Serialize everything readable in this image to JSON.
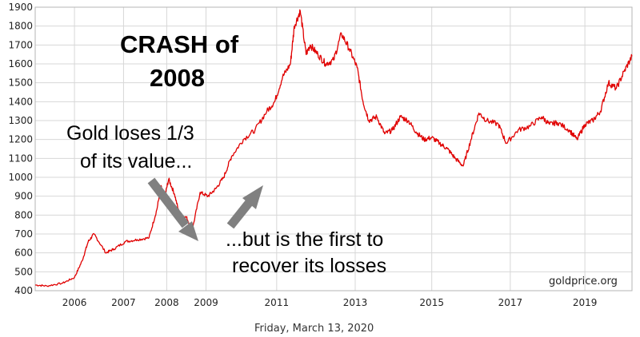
{
  "chart_data": {
    "type": "line",
    "title": "",
    "xlabel": "",
    "ylabel": "",
    "ylim": [
      400,
      1900
    ],
    "xlim": [
      2005.0,
      2020.2
    ],
    "grid": true,
    "y_ticks": [
      400,
      500,
      600,
      700,
      800,
      900,
      1000,
      1100,
      1200,
      1300,
      1400,
      1500,
      1600,
      1700,
      1800,
      1900
    ],
    "x_tick_values": [
      2006,
      2007,
      2008,
      2009,
      2011,
      2013,
      2015,
      2017,
      2019
    ],
    "x_tick_positions": [
      2006,
      2007.25,
      2008.35,
      2009.35,
      2011.15,
      2013.15,
      2015.1,
      2017.1,
      2019.0
    ],
    "color": "#e00000",
    "series": [
      {
        "name": "",
        "x": [
          2005.0,
          2005.3,
          2005.7,
          2006.0,
          2006.2,
          2006.35,
          2006.5,
          2006.8,
          2007.0,
          2007.3,
          2007.6,
          2007.9,
          2008.1,
          2008.2,
          2008.3,
          2008.4,
          2008.55,
          2008.7,
          2008.85,
          2009.0,
          2009.2,
          2009.4,
          2009.6,
          2009.8,
          2010.0,
          2010.3,
          2010.6,
          2010.9,
          2011.1,
          2011.3,
          2011.5,
          2011.6,
          2011.75,
          2011.9,
          2012.0,
          2012.2,
          2012.4,
          2012.6,
          2012.8,
          2013.0,
          2013.2,
          2013.35,
          2013.5,
          2013.7,
          2013.9,
          2014.1,
          2014.3,
          2014.5,
          2014.7,
          2014.9,
          2015.1,
          2015.3,
          2015.5,
          2015.7,
          2015.9,
          2016.1,
          2016.3,
          2016.5,
          2016.8,
          2017.0,
          2017.3,
          2017.6,
          2017.9,
          2018.1,
          2018.3,
          2018.6,
          2018.8,
          2019.0,
          2019.2,
          2019.4,
          2019.6,
          2019.8,
          2020.0,
          2020.2
        ],
        "values": [
          430,
          425,
          440,
          470,
          560,
          660,
          700,
          600,
          620,
          660,
          670,
          680,
          830,
          950,
          900,
          990,
          910,
          780,
          790,
          720,
          920,
          900,
          940,
          1000,
          1110,
          1200,
          1250,
          1350,
          1400,
          1530,
          1600,
          1800,
          1880,
          1650,
          1700,
          1650,
          1600,
          1620,
          1760,
          1680,
          1580,
          1400,
          1300,
          1320,
          1230,
          1250,
          1320,
          1300,
          1240,
          1200,
          1210,
          1180,
          1150,
          1100,
          1060,
          1200,
          1340,
          1300,
          1280,
          1180,
          1250,
          1270,
          1320,
          1280,
          1290,
          1250,
          1200,
          1280,
          1300,
          1350,
          1500,
          1470,
          1560,
          1640
        ]
      }
    ],
    "annotations": {
      "title_line1": "CRASH of",
      "title_line2": "2008",
      "loss_line1": "Gold loses 1/3",
      "loss_line2": "of its value...",
      "recover_line1": "...but is the first to",
      "recover_line2": "recover its losses",
      "watermark": "goldprice.org",
      "date": "Friday, March 13, 2020"
    },
    "arrow_color": "#808080"
  }
}
